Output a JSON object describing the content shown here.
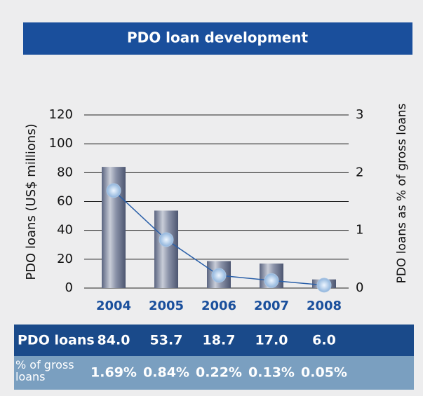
{
  "chart_data": {
    "type": "bar",
    "title": "PDO loan development",
    "categories": [
      "2004",
      "2005",
      "2006",
      "2007",
      "2008"
    ],
    "series": [
      {
        "name": "PDO loans",
        "color": "#6b7590",
        "values": [
          84.0,
          53.7,
          18.7,
          17.0,
          6.0
        ],
        "value_labels": [
          "84.0",
          "53.7",
          "18.7",
          "17.0",
          "6.0"
        ]
      },
      {
        "name": "% of gross loans",
        "type": "line",
        "axis": "y2",
        "color": "#2a5fa8",
        "values": [
          1.69,
          0.84,
          0.22,
          0.13,
          0.05
        ],
        "value_labels": [
          "1.69%",
          "0.84%",
          "0.22%",
          "0.13%",
          "0.05%"
        ]
      }
    ],
    "ylabel": "PDO loans (US$ millions)",
    "y2label": "PDO loans as % of gross loans",
    "ylim": [
      0,
      120
    ],
    "yticks": [
      0,
      20,
      40,
      60,
      80,
      100,
      120
    ],
    "y2lim": [
      0,
      3
    ],
    "y2ticks": [
      0,
      1,
      2,
      3
    ],
    "grid": true
  }
}
